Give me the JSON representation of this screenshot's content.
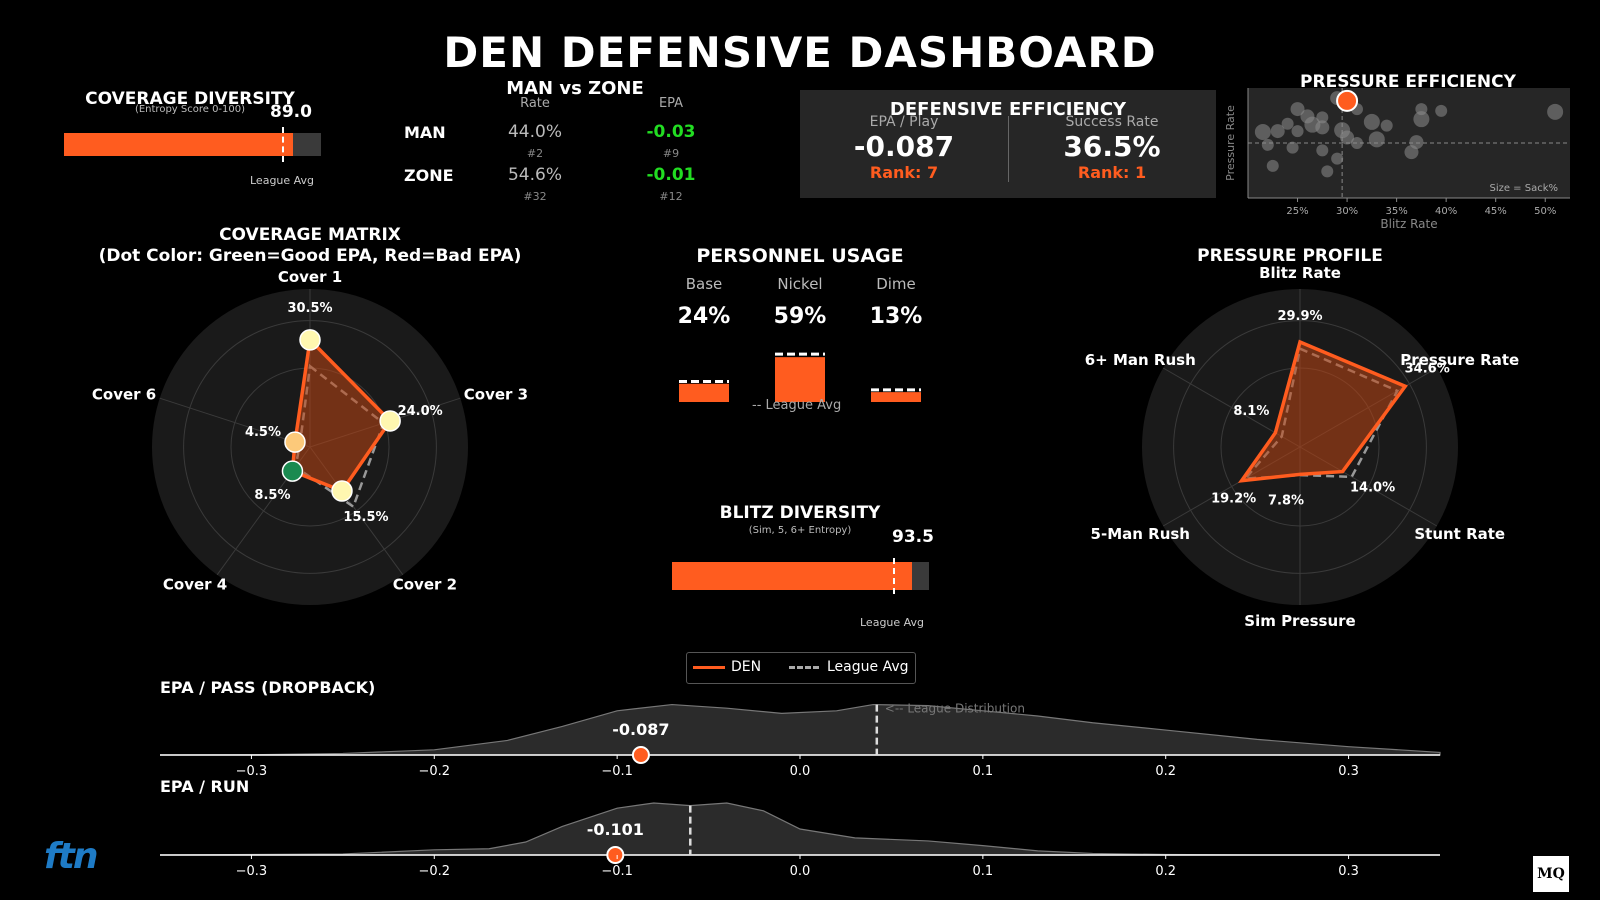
{
  "title": "DEN DEFENSIVE DASHBOARD",
  "colors": {
    "den": "#ff5c1f",
    "league": "#aaaaaa",
    "good": "#22dd22",
    "panel": "#262626"
  },
  "coverage_diversity": {
    "title": "COVERAGE DIVERSITY",
    "subtitle": "(Entropy Score 0-100)",
    "value": 89.0,
    "value_label": "89.0",
    "league_avg": 85,
    "max": 100,
    "league_label": "League Avg"
  },
  "man_zone": {
    "title": "MAN vs ZONE",
    "col_rate": "Rate",
    "col_epa": "EPA",
    "rows": [
      {
        "label": "MAN",
        "rate": "44.0%",
        "rate_rank": "#2",
        "epa": "-0.03",
        "epa_rank": "#9"
      },
      {
        "label": "ZONE",
        "rate": "54.6%",
        "rate_rank": "#32",
        "epa": "-0.01",
        "epa_rank": "#12"
      }
    ]
  },
  "defensive_efficiency": {
    "title": "DEFENSIVE EFFICIENCY",
    "epa_label": "EPA / Play",
    "epa_value": "-0.087",
    "epa_rank": "Rank: 7",
    "sr_label": "Success Rate",
    "sr_value": "36.5%",
    "sr_rank": "Rank: 1"
  },
  "coverage_matrix": {
    "title": "COVERAGE MATRIX",
    "subtitle": "(Dot Color: Green=Good EPA, Red=Bad EPA)"
  },
  "personnel": {
    "title": "PERSONNEL USAGE",
    "league_label": "-- League Avg"
  },
  "blitz_diversity": {
    "title": "BLITZ DIVERSITY",
    "subtitle": "(Sim, 5, 6+ Entropy)",
    "value": 93.5,
    "value_label": "93.5",
    "league_avg": 86,
    "max": 100,
    "league_label": "League Avg"
  },
  "pressure_profile": {
    "title": "PRESSURE PROFILE"
  },
  "pressure_efficiency": {
    "title": "PRESSURE EFFICIENCY"
  },
  "legend": {
    "den": "DEN",
    "league": "League Avg"
  },
  "epa_pass": {
    "title": "EPA / PASS (DROPBACK)"
  },
  "epa_run": {
    "title": "EPA / RUN"
  },
  "logos": {
    "left": "ftn",
    "right": "MQ"
  },
  "chart_data": [
    {
      "type": "radar",
      "name": "coverage-matrix",
      "title": "COVERAGE MATRIX",
      "axes": [
        "Cover 1",
        "Cover 3",
        "Cover 2",
        "Cover 4",
        "Cover 6"
      ],
      "rmax": 45,
      "series": [
        {
          "name": "DEN",
          "values": [
            30.5,
            24.0,
            15.5,
            8.5,
            4.5
          ],
          "labels": [
            "30.5%",
            "24.0%",
            "15.5%",
            "8.5%",
            "4.5%"
          ],
          "dot_colors": [
            "#fff7b0",
            "#fff7b0",
            "#fff7b0",
            "#1a8a50",
            "#fcc97a"
          ]
        },
        {
          "name": "League Avg",
          "values": [
            23,
            22,
            21,
            7,
            3
          ]
        }
      ]
    },
    {
      "type": "bar",
      "name": "personnel-usage",
      "title": "PERSONNEL USAGE",
      "categories": [
        "Base",
        "Nickel",
        "Dime"
      ],
      "values": [
        24,
        59,
        13
      ],
      "labels": [
        "24%",
        "59%",
        "13%"
      ],
      "league_avg": [
        27,
        63,
        16
      ]
    },
    {
      "type": "radar",
      "name": "pressure-profile",
      "title": "PRESSURE PROFILE",
      "axes": [
        "Blitz Rate",
        "Pressure Rate",
        "Stunt Rate",
        "Sim Pressure",
        "5-Man Rush",
        "6+ Man Rush"
      ],
      "rmax": 45,
      "series": [
        {
          "name": "DEN",
          "values": [
            29.9,
            34.6,
            14.0,
            7.8,
            19.2,
            8.1
          ],
          "labels": [
            "29.9%",
            "34.6%",
            "14.0%",
            "7.8%",
            "19.2%",
            "8.1%"
          ]
        },
        {
          "name": "League Avg",
          "values": [
            28,
            32,
            17,
            8,
            18,
            6
          ]
        }
      ]
    },
    {
      "type": "scatter",
      "name": "pressure-efficiency",
      "title": "PRESSURE EFFICIENCY",
      "xlabel": "Blitz Rate",
      "ylabel": "Pressure Rate",
      "xlim": [
        20,
        52.5
      ],
      "ylim": [
        26,
        38
      ],
      "xticks": [
        25,
        30,
        35,
        40,
        45,
        50
      ],
      "xtick_labels": [
        "25%",
        "30%",
        "35%",
        "40%",
        "45%",
        "50%"
      ],
      "xmean": 29.5,
      "ymean": 32.0,
      "note": "Size = Sack%",
      "highlight": {
        "team": "DEN",
        "x": 30.0,
        "y": 36.6
      },
      "points": [
        [
          25,
          35.7,
          7
        ],
        [
          29,
          36.9,
          7
        ],
        [
          31,
          35.7,
          6
        ],
        [
          37.5,
          35.7,
          6
        ],
        [
          39.5,
          35.5,
          6
        ],
        [
          51,
          35.4,
          8
        ],
        [
          26,
          34.9,
          7
        ],
        [
          27.5,
          34.8,
          6
        ],
        [
          37.5,
          34.6,
          8
        ],
        [
          32.5,
          34.3,
          8
        ],
        [
          24,
          34.1,
          6
        ],
        [
          26.5,
          34,
          8
        ],
        [
          27.5,
          33.7,
          7
        ],
        [
          34,
          33.9,
          6
        ],
        [
          21.5,
          33.2,
          8
        ],
        [
          23,
          33.3,
          7
        ],
        [
          25,
          33.3,
          6
        ],
        [
          29.5,
          33.4,
          8
        ],
        [
          30,
          32.6,
          7
        ],
        [
          33,
          32.4,
          8
        ],
        [
          37,
          32.1,
          7
        ],
        [
          31,
          32.0,
          6
        ],
        [
          22,
          31.8,
          6
        ],
        [
          24.5,
          31.5,
          6
        ],
        [
          27.5,
          31.2,
          6
        ],
        [
          36.5,
          31.0,
          7
        ],
        [
          29,
          30.3,
          6
        ],
        [
          22.5,
          29.5,
          6
        ],
        [
          28,
          28.9,
          6
        ]
      ]
    },
    {
      "type": "area",
      "name": "epa-pass-distribution",
      "title": "EPA / PASS (DROPBACK)",
      "xlim": [
        -0.35,
        0.35
      ],
      "xticks": [
        -0.3,
        -0.2,
        -0.1,
        0.0,
        0.1,
        0.2,
        0.3
      ],
      "xtick_labels": [
        "−0.3",
        "−0.2",
        "−0.1",
        "0.0",
        "0.1",
        "0.2",
        "0.3"
      ],
      "x": [
        -0.35,
        -0.3,
        -0.25,
        -0.2,
        -0.16,
        -0.13,
        -0.1,
        -0.07,
        -0.04,
        -0.01,
        0.02,
        0.04,
        0.07,
        0.1,
        0.13,
        0.16,
        0.2,
        0.25,
        0.3,
        0.35
      ],
      "density": [
        0,
        0.005,
        0.03,
        0.1,
        0.28,
        0.55,
        0.85,
        0.97,
        0.9,
        0.8,
        0.85,
        0.97,
        0.95,
        0.85,
        0.75,
        0.62,
        0.48,
        0.3,
        0.16,
        0.05
      ],
      "league_mean": 0.042,
      "league_label": "<-- League Distribution",
      "team_value": -0.087,
      "team_label": "-0.087"
    },
    {
      "type": "area",
      "name": "epa-run-distribution",
      "title": "EPA / RUN",
      "xlim": [
        -0.35,
        0.35
      ],
      "xticks": [
        -0.3,
        -0.2,
        -0.1,
        0.0,
        0.1,
        0.2,
        0.3
      ],
      "xtick_labels": [
        "−0.3",
        "−0.2",
        "−0.1",
        "0.0",
        "0.1",
        "0.2",
        "0.3"
      ],
      "x": [
        -0.35,
        -0.25,
        -0.2,
        -0.17,
        -0.15,
        -0.13,
        -0.1,
        -0.08,
        -0.06,
        -0.04,
        -0.02,
        0,
        0.03,
        0.07,
        0.1,
        0.13,
        0.16,
        0.2,
        0.25,
        0.35
      ],
      "density": [
        0,
        0.02,
        0.1,
        0.12,
        0.25,
        0.55,
        0.9,
        1.0,
        0.95,
        1.0,
        0.85,
        0.5,
        0.33,
        0.27,
        0.18,
        0.08,
        0.03,
        0.01,
        0,
        0
      ],
      "league_mean": -0.06,
      "team_value": -0.101,
      "team_label": "-0.101"
    }
  ]
}
